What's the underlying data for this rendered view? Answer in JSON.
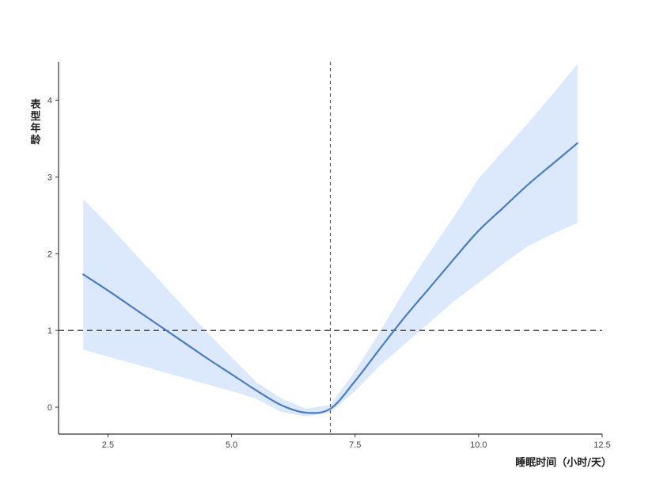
{
  "chart_data": {
    "type": "line",
    "title": "",
    "xlabel": "睡眠时间（小时/天）",
    "ylabel": "表型年龄",
    "xlim": [
      1.5,
      12.5
    ],
    "ylim": [
      -0.35,
      4.5
    ],
    "x_ticks": [
      "2.5",
      "5.0",
      "7.5",
      "10.0",
      "12.5"
    ],
    "y_ticks": [
      "0",
      "1",
      "2",
      "3",
      "4"
    ],
    "grid": false,
    "legend": "none",
    "reference_lines": {
      "vertical_x": 7.0,
      "horizontal_y": 1.0
    },
    "series": [
      {
        "x": [
          2.0,
          2.5,
          3.0,
          3.5,
          4.0,
          4.5,
          5.0,
          5.5,
          6.0,
          6.5,
          7.0,
          7.5,
          8.0,
          8.5,
          9.0,
          9.5,
          10.0,
          10.5,
          11.0,
          11.5,
          12.0
        ],
        "y": [
          1.73,
          1.52,
          1.3,
          1.08,
          0.86,
          0.64,
          0.43,
          0.22,
          0.03,
          -0.07,
          -0.02,
          0.34,
          0.76,
          1.17,
          1.55,
          1.93,
          2.3,
          2.6,
          2.9,
          3.17,
          3.44
        ],
        "lower": [
          0.75,
          0.66,
          0.57,
          0.48,
          0.39,
          0.3,
          0.21,
          0.11,
          -0.06,
          -0.12,
          -0.07,
          0.21,
          0.54,
          0.82,
          1.1,
          1.38,
          1.62,
          1.87,
          2.1,
          2.26,
          2.4
        ],
        "upper": [
          2.71,
          2.38,
          2.03,
          1.68,
          1.33,
          0.98,
          0.65,
          0.33,
          0.12,
          -0.02,
          0.03,
          0.47,
          0.98,
          1.52,
          2.01,
          2.48,
          2.98,
          3.34,
          3.7,
          4.08,
          4.47
        ]
      }
    ],
    "colors": {
      "line": "#4a7cc2",
      "band": "#dce8fb",
      "axis": "#333333",
      "reference": "#555555"
    }
  }
}
